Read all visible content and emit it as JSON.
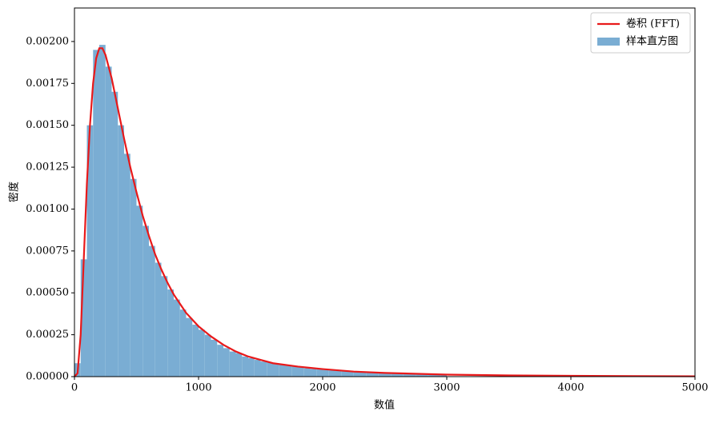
{
  "chart_data": {
    "type": "histogram",
    "xlabel": "数值",
    "ylabel": "密度",
    "xlim": [
      0,
      5000
    ],
    "xticks": [
      0,
      1000,
      2000,
      3000,
      4000,
      5000
    ],
    "ylim": [
      0,
      0.0022
    ],
    "yticks": [
      {
        "value": 0,
        "label": "0.00000"
      },
      {
        "value": 0.00025,
        "label": "0.00025"
      },
      {
        "value": 0.0005,
        "label": "0.00050"
      },
      {
        "value": 0.00075,
        "label": "0.00075"
      },
      {
        "value": 0.001,
        "label": "0.00100"
      },
      {
        "value": 0.00125,
        "label": "0.00125"
      },
      {
        "value": 0.0015,
        "label": "0.00150"
      },
      {
        "value": 0.00175,
        "label": "0.00175"
      },
      {
        "value": 0.002,
        "label": "0.00200"
      }
    ],
    "legend": "upper right",
    "series": [
      {
        "name": "卷积 (FFT)",
        "type": "line",
        "color": "#e8191a",
        "x": [
          0,
          25,
          50,
          75,
          100,
          125,
          150,
          175,
          200,
          225,
          250,
          300,
          350,
          400,
          450,
          500,
          550,
          600,
          650,
          700,
          750,
          800,
          900,
          1000,
          1100,
          1200,
          1300,
          1400,
          1500,
          1600,
          1800,
          2000,
          2250,
          2500,
          3000,
          3500,
          4000,
          4500,
          5000
        ],
        "values": [
          0,
          2e-05,
          0.00025,
          0.0007,
          0.00115,
          0.0015,
          0.00175,
          0.0019,
          0.00196,
          0.00196,
          0.00192,
          0.00178,
          0.0016,
          0.00142,
          0.00125,
          0.0011,
          0.00096,
          0.00084,
          0.00073,
          0.00064,
          0.00056,
          0.00049,
          0.00038,
          0.0003,
          0.00024,
          0.00019,
          0.00015,
          0.00012,
          0.0001,
          8e-05,
          6e-05,
          4.5e-05,
          3e-05,
          2.2e-05,
          1.2e-05,
          7e-06,
          5e-06,
          3e-06,
          2e-06
        ]
      },
      {
        "name": "样本直方图",
        "type": "histogram",
        "color": "#7aadd3",
        "bins": [
          0,
          50,
          100,
          150,
          200,
          250,
          300,
          350,
          400,
          450,
          500,
          550,
          600,
          650,
          700,
          750,
          800,
          850,
          900,
          950,
          1000,
          1050,
          1100,
          1150,
          1200,
          1250,
          1300,
          1350,
          1400,
          1450,
          1500,
          1550,
          1600,
          1650,
          1700,
          1750,
          1800,
          1850,
          1900,
          1950,
          2000,
          2050,
          2100,
          2150,
          2200,
          2250,
          2300,
          2350,
          2400,
          2450,
          2500,
          2550,
          2600,
          2650,
          2700,
          2750,
          2800,
          2850,
          2900,
          2950,
          3000
        ],
        "values": [
          8e-05,
          0.0007,
          0.0015,
          0.00195,
          0.00198,
          0.00185,
          0.0017,
          0.0015,
          0.00133,
          0.00118,
          0.00102,
          0.0009,
          0.00078,
          0.00068,
          0.0006,
          0.00052,
          0.00046,
          0.0004,
          0.00035,
          0.00031,
          0.00028,
          0.00025,
          0.00022,
          0.00019,
          0.00017,
          0.00015,
          0.00014,
          0.00012,
          0.00011,
          0.0001,
          9e-05,
          8.5e-05,
          7.5e-05,
          7e-05,
          6.5e-05,
          6e-05,
          5.5e-05,
          5e-05,
          4.6e-05,
          4.3e-05,
          4e-05,
          3.7e-05,
          3.4e-05,
          3.2e-05,
          3e-05,
          2.8e-05,
          2.6e-05,
          2.4e-05,
          2.3e-05,
          2.1e-05,
          2e-05,
          1.9e-05,
          1.7e-05,
          1.6e-05,
          1.5e-05,
          1.4e-05,
          1.3e-05,
          1.2e-05,
          1.2e-05,
          1.1e-05
        ]
      }
    ]
  }
}
